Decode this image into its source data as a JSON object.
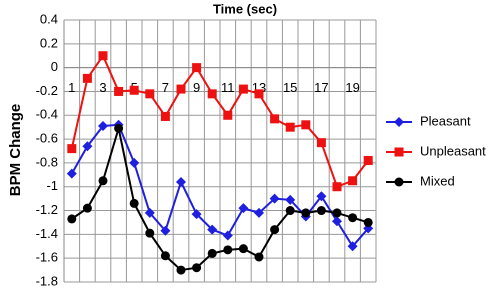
{
  "chart_data": {
    "type": "line",
    "title": "Time (sec)",
    "y_label": "BPM Change",
    "categories": [
      "1",
      null,
      "3",
      null,
      "5",
      null,
      "7",
      null,
      "9",
      null,
      "11",
      null,
      "13",
      null,
      "15",
      null,
      "17",
      null,
      "19",
      null
    ],
    "series": [
      {
        "name": "Pleasant",
        "color": "#1f1fe0",
        "marker": "diamond",
        "values": [
          -0.89,
          -0.66,
          -0.49,
          -0.48,
          -0.8,
          -1.22,
          -1.37,
          -0.96,
          -1.23,
          -1.36,
          -1.41,
          -1.18,
          -1.22,
          -1.1,
          -1.11,
          -1.25,
          -1.08,
          -1.29,
          -1.5,
          -1.35
        ]
      },
      {
        "name": "Unpleasant",
        "color": "#ee1111",
        "marker": "square",
        "values": [
          -0.68,
          -0.09,
          0.1,
          -0.2,
          -0.19,
          -0.22,
          -0.41,
          -0.18,
          0,
          -0.22,
          -0.4,
          -0.18,
          -0.22,
          -0.43,
          -0.5,
          -0.48,
          -0.63,
          -1.0,
          -0.95,
          -0.78
        ]
      },
      {
        "name": "Mixed",
        "color": "#000000",
        "marker": "circle",
        "values": [
          -1.27,
          -1.18,
          -0.95,
          -0.51,
          -1.14,
          -1.39,
          -1.58,
          -1.7,
          -1.68,
          -1.56,
          -1.53,
          -1.52,
          -1.59,
          -1.36,
          -1.2,
          -1.22,
          -1.2,
          -1.22,
          -1.26,
          -1.3
        ]
      }
    ],
    "ylim": [
      -1.8,
      0.4
    ],
    "yticks": [
      0.4,
      0.2,
      0,
      -0.2,
      -0.4,
      -0.6,
      -0.8,
      -1,
      -1.2,
      -1.4,
      -1.6,
      -1.8
    ],
    "grid": true,
    "legend": "right"
  }
}
